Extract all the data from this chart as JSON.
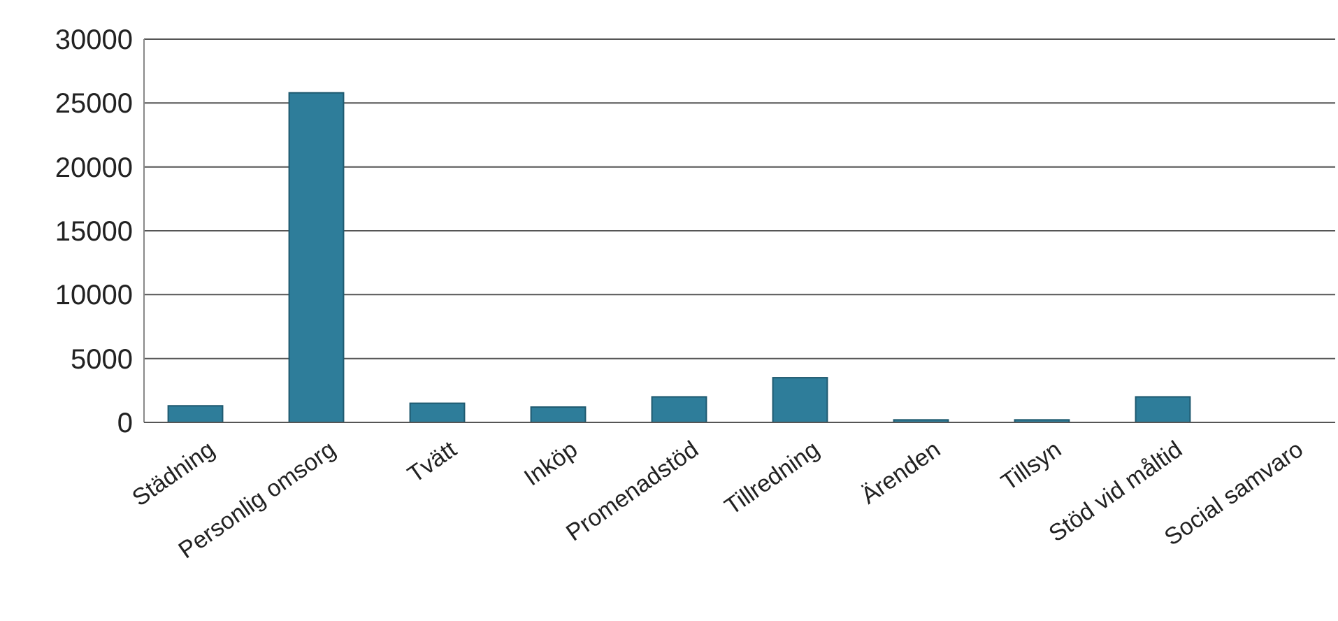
{
  "chart_data": {
    "type": "bar",
    "categories": [
      "Städning",
      "Personlig omsorg",
      "Tvätt",
      "Inköp",
      "Promenadstöd",
      "Tillredning",
      "Ärenden",
      "Tillsyn",
      "Stöd vid måltid",
      "Social samvaro"
    ],
    "values": [
      1300,
      25800,
      1500,
      1200,
      2000,
      3500,
      200,
      200,
      2000,
      0
    ],
    "color": "#2e7d9a",
    "ylim": [
      0,
      30000
    ],
    "yticks": [
      0,
      5000,
      10000,
      15000,
      20000,
      25000,
      30000
    ],
    "grid": "y"
  }
}
